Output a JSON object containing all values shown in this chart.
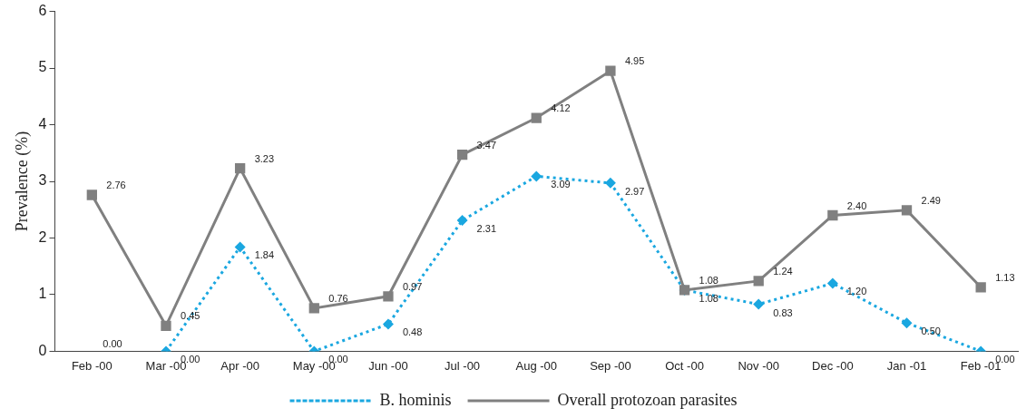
{
  "chart_data": {
    "type": "line",
    "ylabel": "Prevalence (%)",
    "categories": [
      "Feb -00",
      "Mar -00",
      "Apr -00",
      "May -00",
      "Jun -00",
      "Jul -00",
      "Aug -00",
      "Sep -00",
      "Oct -00",
      "Nov -00",
      "Dec -00",
      "Jan -01",
      "Feb -01"
    ],
    "series": [
      {
        "name": "B. hominis",
        "color": "#1aa7e0",
        "marker": "diamond",
        "line_style": "dotted",
        "values": [
          null,
          0,
          1.84,
          0,
          0.48,
          2.31,
          3.09,
          2.97,
          1.08,
          0.83,
          1.2,
          0.5,
          0
        ],
        "value_labels": [
          null,
          "0.00",
          "1.84",
          "0.00",
          "0.48",
          "2.31",
          "3.09",
          "2.97",
          "1.08",
          "0.83",
          "1.20",
          "0.50",
          "0.00"
        ]
      },
      {
        "name": "Overall protozoan parasites",
        "color": "#808080",
        "marker": "square",
        "line_style": "solid",
        "values": [
          2.76,
          0.45,
          3.23,
          0.76,
          0.97,
          3.47,
          4.12,
          4.95,
          1.08,
          1.24,
          2.4,
          2.49,
          1.13
        ],
        "value_labels": [
          "2.76",
          "0.45",
          "3.23",
          "0.76",
          "0.97",
          "3.47",
          "4.12",
          "4.95",
          "1.08",
          "1.24",
          "2.40",
          "2.49",
          "1.13"
        ]
      }
    ],
    "annotations": [
      "0.00"
    ],
    "ylim": [
      0,
      6
    ],
    "yticks": [
      0,
      1,
      2,
      3,
      4,
      5,
      6
    ],
    "grid": false,
    "legend": "bottom"
  }
}
